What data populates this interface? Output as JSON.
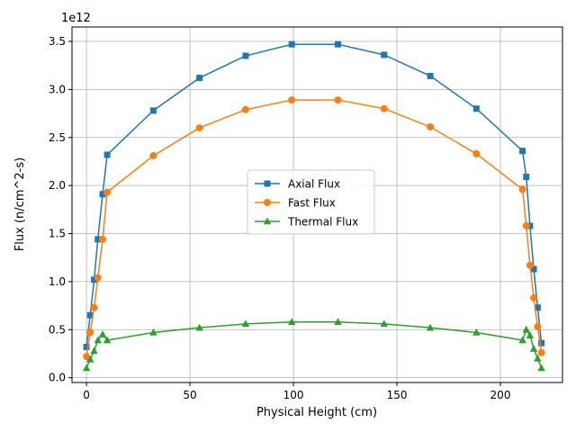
{
  "chart_data": {
    "type": "line",
    "xlabel": "Physical Height (cm)",
    "ylabel": "Flux (n/cm^2-s)",
    "y_offset_label": "1e12",
    "y_scale": 1000000000000.0,
    "xlim": [
      -7,
      230
    ],
    "ylim": [
      -0.05,
      3.65
    ],
    "xticks": [
      0,
      50,
      100,
      150,
      200
    ],
    "yticks": [
      0.0,
      0.5,
      1.0,
      1.5,
      2.0,
      2.5,
      3.0,
      3.5
    ],
    "ytick_labels": [
      "0.0",
      "0.5",
      "1.0",
      "1.5",
      "2.0",
      "2.5",
      "3.0",
      "3.5"
    ],
    "grid": true,
    "legend_placement": "center-right",
    "x": [
      0,
      1.8,
      3.7,
      5.5,
      7.8,
      10,
      32.3,
      54.6,
      76.9,
      99.2,
      121.5,
      143.8,
      166.1,
      188.4,
      210.7,
      212.5,
      214.3,
      216.1,
      218,
      219.8
    ],
    "series": [
      {
        "name": "Axial Flux",
        "color": "#1f77b4",
        "marker": "square",
        "values": [
          0.32,
          0.65,
          1.02,
          1.44,
          1.91,
          2.32,
          2.78,
          3.12,
          3.35,
          3.47,
          3.47,
          3.36,
          3.14,
          2.8,
          2.36,
          2.09,
          1.58,
          1.13,
          0.73,
          0.36
        ]
      },
      {
        "name": "Fast Flux",
        "color": "#ff7f0e",
        "marker": "circle",
        "values": [
          0.22,
          0.47,
          0.73,
          1.04,
          1.44,
          1.93,
          2.31,
          2.6,
          2.79,
          2.89,
          2.89,
          2.8,
          2.61,
          2.33,
          1.96,
          1.58,
          1.17,
          0.83,
          0.53,
          0.26
        ]
      },
      {
        "name": "Thermal Flux",
        "color": "#2ca02c",
        "marker": "triangle",
        "values": [
          0.1,
          0.19,
          0.28,
          0.39,
          0.45,
          0.39,
          0.47,
          0.52,
          0.56,
          0.58,
          0.58,
          0.56,
          0.52,
          0.47,
          0.39,
          0.5,
          0.44,
          0.3,
          0.2,
          0.1
        ]
      }
    ]
  }
}
